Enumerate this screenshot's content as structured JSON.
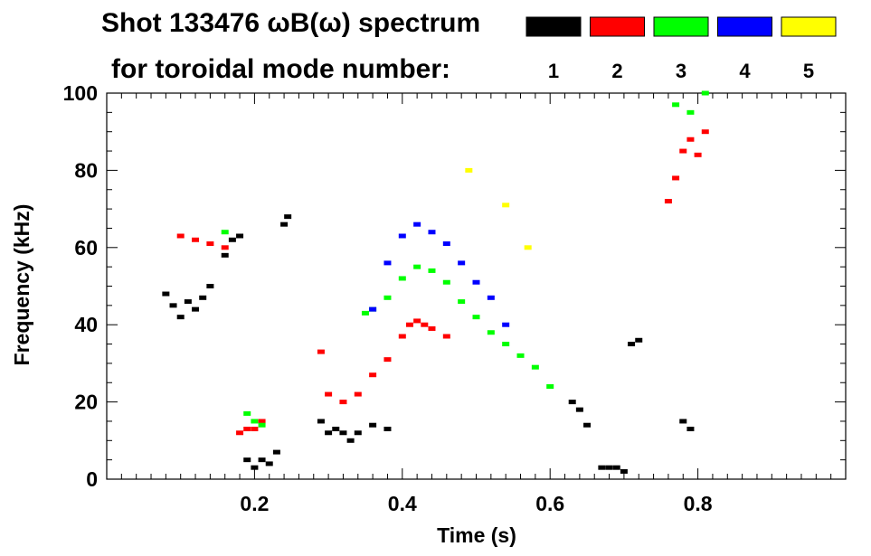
{
  "chart_data": {
    "type": "scatter",
    "title": "Shot 133476 ωB(ω) spectrum",
    "subtitle": "for toroidal mode number:",
    "xlabel": "Time (s)",
    "ylabel": "Frequency (kHz)",
    "xlim": [
      0.0,
      1.0
    ],
    "ylim": [
      0,
      100
    ],
    "xticks": [
      0.2,
      0.4,
      0.6,
      0.8
    ],
    "yticks": [
      0,
      20,
      40,
      60,
      80,
      100
    ],
    "legend_placement": "top-right",
    "grid": false,
    "legend": [
      {
        "label": "1",
        "color": "#000000"
      },
      {
        "label": "2",
        "color": "#ff0000"
      },
      {
        "label": "3",
        "color": "#00ff00"
      },
      {
        "label": "4",
        "color": "#0000ff"
      },
      {
        "label": "5",
        "color": "#ffff00"
      }
    ],
    "series": [
      {
        "name": "1",
        "color": "#000000",
        "points": [
          [
            0.08,
            48
          ],
          [
            0.09,
            45
          ],
          [
            0.1,
            42
          ],
          [
            0.11,
            46
          ],
          [
            0.12,
            44
          ],
          [
            0.13,
            47
          ],
          [
            0.14,
            50
          ],
          [
            0.16,
            58
          ],
          [
            0.17,
            62
          ],
          [
            0.18,
            63
          ],
          [
            0.19,
            5
          ],
          [
            0.2,
            3
          ],
          [
            0.21,
            5
          ],
          [
            0.22,
            4
          ],
          [
            0.23,
            7
          ],
          [
            0.24,
            66
          ],
          [
            0.245,
            68
          ],
          [
            0.29,
            15
          ],
          [
            0.3,
            12
          ],
          [
            0.31,
            13
          ],
          [
            0.32,
            12
          ],
          [
            0.33,
            10
          ],
          [
            0.34,
            12
          ],
          [
            0.36,
            14
          ],
          [
            0.38,
            13
          ],
          [
            0.63,
            20
          ],
          [
            0.64,
            18
          ],
          [
            0.65,
            14
          ],
          [
            0.67,
            3
          ],
          [
            0.68,
            3
          ],
          [
            0.69,
            3
          ],
          [
            0.7,
            2
          ],
          [
            0.71,
            35
          ],
          [
            0.72,
            36
          ],
          [
            0.78,
            15
          ],
          [
            0.79,
            13
          ]
        ]
      },
      {
        "name": "2",
        "color": "#ff0000",
        "points": [
          [
            0.1,
            63
          ],
          [
            0.12,
            62
          ],
          [
            0.14,
            61
          ],
          [
            0.16,
            60
          ],
          [
            0.18,
            12
          ],
          [
            0.19,
            13
          ],
          [
            0.2,
            13
          ],
          [
            0.21,
            15
          ],
          [
            0.29,
            33
          ],
          [
            0.3,
            22
          ],
          [
            0.32,
            20
          ],
          [
            0.34,
            22
          ],
          [
            0.36,
            27
          ],
          [
            0.38,
            31
          ],
          [
            0.4,
            37
          ],
          [
            0.41,
            40
          ],
          [
            0.42,
            41
          ],
          [
            0.43,
            40
          ],
          [
            0.44,
            39
          ],
          [
            0.46,
            37
          ],
          [
            0.76,
            72
          ],
          [
            0.77,
            78
          ],
          [
            0.78,
            85
          ],
          [
            0.79,
            88
          ],
          [
            0.8,
            84
          ],
          [
            0.81,
            90
          ]
        ]
      },
      {
        "name": "3",
        "color": "#00ff00",
        "points": [
          [
            0.16,
            64
          ],
          [
            0.19,
            17
          ],
          [
            0.2,
            15
          ],
          [
            0.21,
            14
          ],
          [
            0.35,
            43
          ],
          [
            0.36,
            44
          ],
          [
            0.38,
            47
          ],
          [
            0.4,
            52
          ],
          [
            0.42,
            55
          ],
          [
            0.44,
            54
          ],
          [
            0.46,
            51
          ],
          [
            0.48,
            46
          ],
          [
            0.5,
            42
          ],
          [
            0.52,
            38
          ],
          [
            0.54,
            35
          ],
          [
            0.56,
            32
          ],
          [
            0.58,
            29
          ],
          [
            0.6,
            24
          ],
          [
            0.77,
            97
          ],
          [
            0.79,
            95
          ],
          [
            0.81,
            100
          ]
        ]
      },
      {
        "name": "4",
        "color": "#0000ff",
        "points": [
          [
            0.36,
            44
          ],
          [
            0.38,
            56
          ],
          [
            0.4,
            63
          ],
          [
            0.42,
            66
          ],
          [
            0.44,
            64
          ],
          [
            0.46,
            61
          ],
          [
            0.48,
            56
          ],
          [
            0.5,
            51
          ],
          [
            0.52,
            47
          ],
          [
            0.54,
            40
          ]
        ]
      },
      {
        "name": "5",
        "color": "#ffff00",
        "points": [
          [
            0.49,
            80
          ],
          [
            0.54,
            71
          ],
          [
            0.57,
            60
          ]
        ]
      }
    ]
  }
}
